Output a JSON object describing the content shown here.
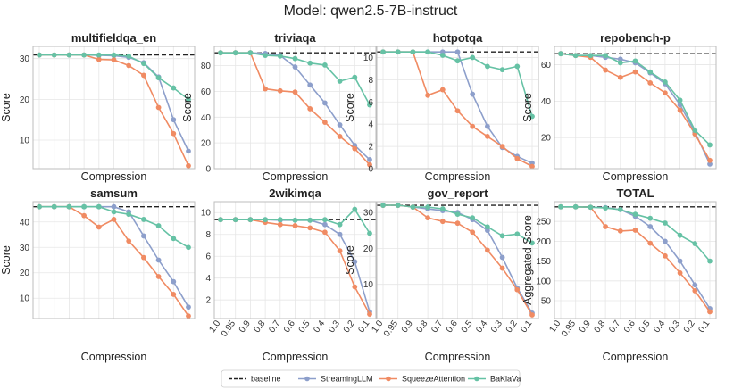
{
  "figure": {
    "suptitle": "Model: qwen2.5-7B-instruct",
    "xlabel": "Compression",
    "ylabel_default": "Score"
  },
  "colors": {
    "baseline": "#222222",
    "StreamingLLM": "#8d9fcb",
    "SqueezeAttention": "#f08b63",
    "BaKlaVa": "#66c2a5"
  },
  "legend": {
    "placement": "bottom-center",
    "entries": [
      {
        "key": "baseline",
        "label": "baseline",
        "style": "dashed"
      },
      {
        "key": "StreamingLLM",
        "label": "StreamingLLM",
        "style": "marker"
      },
      {
        "key": "SqueezeAttention",
        "label": "SqueezeAttention",
        "style": "marker"
      },
      {
        "key": "BaKlaVa",
        "label": "BaKlaVa",
        "style": "marker"
      }
    ]
  },
  "chart_data": [
    {
      "type": "line",
      "title": "multifieldqa_en",
      "xlabel": "Compression",
      "ylabel": "Score",
      "categories": [
        "1.0",
        "0.95",
        "0.9",
        "0.8",
        "0.7",
        "0.6",
        "0.5",
        "0.4",
        "0.3",
        "0.2",
        "0.1"
      ],
      "ylim": [
        3,
        33
      ],
      "yticks": [
        10,
        20,
        30
      ],
      "show_xticklabels": false,
      "baseline": 30.9,
      "grid": true,
      "series": [
        {
          "name": "StreamingLLM",
          "values": [
            30.9,
            30.9,
            30.9,
            30.9,
            30.8,
            30.7,
            30.3,
            29.0,
            25.5,
            15.0,
            7.3
          ]
        },
        {
          "name": "SqueezeAttention",
          "values": [
            30.9,
            30.9,
            30.9,
            30.9,
            29.8,
            29.7,
            28.3,
            25.9,
            18.0,
            11.6,
            3.7
          ]
        },
        {
          "name": "BaKlaVa",
          "values": [
            30.9,
            30.9,
            30.9,
            30.9,
            30.9,
            30.9,
            30.6,
            28.8,
            25.3,
            22.8,
            20.0
          ]
        }
      ]
    },
    {
      "type": "line",
      "title": "triviaqa",
      "xlabel": "Compression",
      "ylabel": "Score",
      "categories": [
        "1.0",
        "0.95",
        "0.9",
        "0.8",
        "0.7",
        "0.6",
        "0.5",
        "0.4",
        "0.3",
        "0.2",
        "0.1"
      ],
      "ylim": [
        0,
        95
      ],
      "yticks": [
        0,
        20,
        40,
        60,
        80
      ],
      "show_xticklabels": false,
      "baseline": 90,
      "grid": true,
      "series": [
        {
          "name": "StreamingLLM",
          "values": [
            90,
            90,
            90,
            89.5,
            88,
            79,
            65,
            51,
            34,
            18,
            7
          ]
        },
        {
          "name": "SqueezeAttention",
          "values": [
            90,
            90,
            90,
            62,
            60.5,
            59.5,
            46.5,
            36,
            25,
            15.5,
            3
          ]
        },
        {
          "name": "BaKlaVa",
          "values": [
            90,
            90,
            90,
            88,
            87.5,
            85.5,
            82,
            80.5,
            68,
            71,
            49.5
          ]
        }
      ]
    },
    {
      "type": "line",
      "title": "hotpotqa",
      "xlabel": "Compression",
      "ylabel": "Score",
      "categories": [
        "1.0",
        "0.95",
        "0.9",
        "0.8",
        "0.7",
        "0.6",
        "0.5",
        "0.4",
        "0.3",
        "0.2",
        "0.1"
      ],
      "ylim": [
        0,
        11
      ],
      "yticks": [
        0,
        2,
        4,
        6,
        8,
        10
      ],
      "show_xticklabels": false,
      "baseline": 10.5,
      "grid": true,
      "series": [
        {
          "name": "StreamingLLM",
          "values": [
            10.5,
            10.5,
            10.5,
            10.5,
            10.5,
            10.5,
            6.7,
            3.8,
            1.9,
            1.1,
            0.5
          ]
        },
        {
          "name": "SqueezeAttention",
          "values": [
            10.5,
            10.5,
            10.5,
            6.6,
            7.1,
            5.2,
            3.8,
            2.9,
            2.0,
            0.9,
            0.2
          ]
        },
        {
          "name": "BaKlaVa",
          "values": [
            10.5,
            10.5,
            10.5,
            10.5,
            10.2,
            9.7,
            10.0,
            9.2,
            8.9,
            9.2,
            4.7
          ]
        }
      ]
    },
    {
      "type": "line",
      "title": "repobench-p",
      "xlabel": "Compression",
      "ylabel": "Score",
      "categories": [
        "1.0",
        "0.95",
        "0.9",
        "0.8",
        "0.7",
        "0.6",
        "0.5",
        "0.4",
        "0.3",
        "0.2",
        "0.1"
      ],
      "ylim": [
        3,
        70
      ],
      "yticks": [
        20,
        40,
        60
      ],
      "show_xticklabels": false,
      "baseline": 66,
      "grid": true,
      "series": [
        {
          "name": "StreamingLLM",
          "values": [
            66,
            65,
            65,
            64,
            63,
            61,
            55.5,
            49.5,
            38,
            23,
            5.5
          ]
        },
        {
          "name": "SqueezeAttention",
          "values": [
            66,
            65,
            64,
            57,
            53,
            56,
            50,
            44.5,
            35,
            22,
            7.5
          ]
        },
        {
          "name": "BaKlaVa",
          "values": [
            66,
            65,
            65,
            65,
            61,
            62,
            56,
            50.5,
            40.5,
            24,
            16
          ]
        }
      ]
    },
    {
      "type": "line",
      "title": "samsum",
      "xlabel": "Compression",
      "ylabel": "Score",
      "categories": [
        "1.0",
        "0.95",
        "0.9",
        "0.8",
        "0.7",
        "0.6",
        "0.5",
        "0.4",
        "0.3",
        "0.2",
        "0.1"
      ],
      "ylim": [
        2,
        48
      ],
      "yticks": [
        10,
        20,
        30,
        40
      ],
      "show_xticklabels": false,
      "baseline": 46,
      "grid": true,
      "series": [
        {
          "name": "StreamingLLM",
          "values": [
            46,
            46,
            46,
            46,
            46,
            46,
            44,
            34.5,
            25,
            16.5,
            6.5
          ]
        },
        {
          "name": "SqueezeAttention",
          "values": [
            46,
            46,
            46,
            42.5,
            38,
            41,
            32.5,
            26,
            18.5,
            11.5,
            3
          ]
        },
        {
          "name": "BaKlaVa",
          "values": [
            46,
            46,
            46,
            46,
            46,
            44,
            43,
            41,
            38.5,
            33.5,
            30
          ]
        }
      ]
    },
    {
      "type": "line",
      "title": "2wikimqa",
      "xlabel": "Compression",
      "ylabel": "",
      "categories": [
        "1.0",
        "0.95",
        "0.9",
        "0.8",
        "0.7",
        "0.6",
        "0.5",
        "0.4",
        "0.3",
        "0.2",
        "0.1"
      ],
      "ylim": [
        0.3,
        11
      ],
      "yticks": [
        2,
        4,
        6,
        8,
        10
      ],
      "show_xticklabels": true,
      "baseline": 9.35,
      "grid": true,
      "series": [
        {
          "name": "StreamingLLM",
          "values": [
            9.35,
            9.35,
            9.35,
            9.35,
            9.3,
            9.3,
            9.3,
            8.9,
            8.0,
            5.5,
            0.9
          ]
        },
        {
          "name": "SqueezeAttention",
          "values": [
            9.35,
            9.35,
            9.35,
            9.1,
            8.9,
            8.8,
            8.6,
            8.2,
            6.5,
            3.2,
            0.7
          ]
        },
        {
          "name": "BaKlaVa",
          "values": [
            9.35,
            9.35,
            9.35,
            9.35,
            9.35,
            9.3,
            9.3,
            9.35,
            8.9,
            10.3,
            8.1
          ]
        }
      ]
    },
    {
      "type": "line",
      "title": "gov_report",
      "xlabel": "Compression",
      "ylabel": "Score",
      "categories": [
        "1.0",
        "0.95",
        "0.9",
        "0.8",
        "0.7",
        "0.6",
        "0.5",
        "0.4",
        "0.3",
        "0.2",
        "0.1"
      ],
      "ylim": [
        0.5,
        33
      ],
      "yticks": [
        10,
        20,
        30
      ],
      "show_xticklabels": true,
      "baseline": 32,
      "grid": true,
      "series": [
        {
          "name": "StreamingLLM",
          "values": [
            32,
            32,
            31.5,
            31,
            30.5,
            30,
            28,
            25,
            17.5,
            9,
            2
          ]
        },
        {
          "name": "SqueezeAttention",
          "values": [
            32,
            32,
            31.5,
            28.5,
            27.5,
            27,
            24.5,
            19.5,
            14.5,
            8.5,
            1.5
          ]
        },
        {
          "name": "BaKlaVa",
          "values": [
            32,
            32,
            31.5,
            31.5,
            31,
            29.5,
            28.5,
            26,
            23.5,
            24,
            21.5
          ]
        }
      ]
    },
    {
      "type": "line",
      "title": "TOTAL",
      "xlabel": "Compression",
      "ylabel": "Aggregated Score",
      "categories": [
        "1.0",
        "0.95",
        "0.9",
        "0.8",
        "0.7",
        "0.6",
        "0.5",
        "0.4",
        "0.3",
        "0.2",
        "0.1"
      ],
      "ylim": [
        5,
        300
      ],
      "yticks": [
        50,
        100,
        150,
        200,
        250
      ],
      "show_xticklabels": true,
      "baseline": 287,
      "grid": true,
      "series": [
        {
          "name": "StreamingLLM",
          "values": [
            287,
            287,
            286,
            285,
            280,
            263,
            237,
            200,
            150,
            90,
            30
          ]
        },
        {
          "name": "SqueezeAttention",
          "values": [
            287,
            287,
            286,
            237,
            226,
            228,
            195,
            163,
            120,
            75,
            22
          ]
        },
        {
          "name": "BaKlaVa",
          "values": [
            287,
            287,
            286,
            284,
            280,
            268,
            258,
            246,
            215,
            194,
            150
          ]
        }
      ]
    }
  ]
}
